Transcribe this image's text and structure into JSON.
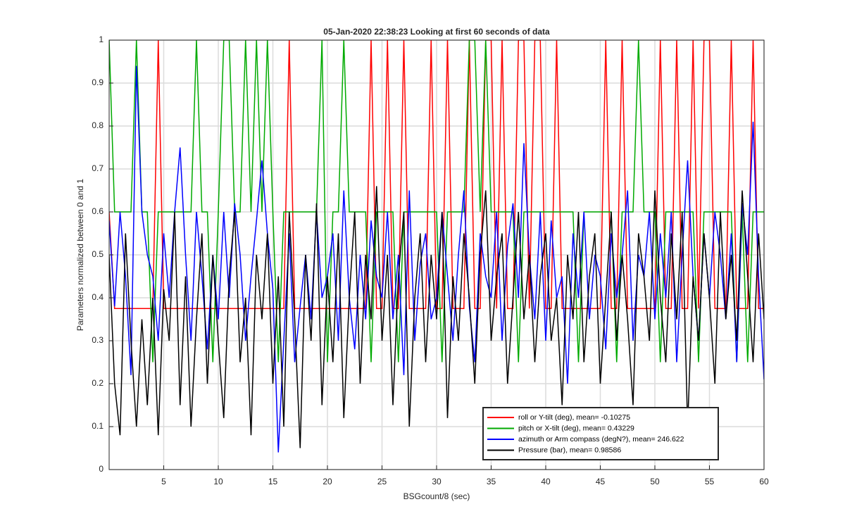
{
  "chart_data": {
    "type": "line",
    "title": "05-Jan-2020 22:38:23 Looking at first 60 seconds of data",
    "x_label": "BSGcount/8 (sec)",
    "y_label": "Parameters normalized between 0 and 1",
    "x": [
      0,
      0.5,
      1,
      1.5,
      2,
      2.5,
      3,
      3.5,
      4,
      4.5,
      5,
      5.5,
      6,
      6.5,
      7,
      7.5,
      8,
      8.5,
      9,
      9.5,
      10,
      10.5,
      11,
      11.5,
      12,
      12.5,
      13,
      13.5,
      14,
      14.5,
      15,
      15.5,
      16,
      16.5,
      17,
      17.5,
      18,
      18.5,
      19,
      19.5,
      20,
      20.5,
      21,
      21.5,
      22,
      22.5,
      23,
      23.5,
      24,
      24.5,
      25,
      25.5,
      26,
      26.5,
      27,
      27.5,
      28,
      28.5,
      29,
      29.5,
      30,
      30.5,
      31,
      31.5,
      32,
      32.5,
      33,
      33.5,
      34,
      34.5,
      35,
      35.5,
      36,
      36.5,
      37,
      37.5,
      38,
      38.5,
      39,
      39.5,
      40,
      40.5,
      41,
      41.5,
      42,
      42.5,
      43,
      43.5,
      44,
      44.5,
      45,
      45.5,
      46,
      46.5,
      47,
      47.5,
      48,
      48.5,
      49,
      49.5,
      50,
      50.5,
      51,
      51.5,
      52,
      52.5,
      53,
      53.5,
      54,
      54.5,
      55,
      55.5,
      56,
      56.5,
      57,
      57.5,
      58,
      58.5,
      59,
      59.5,
      60
    ],
    "series": [
      {
        "name": "roll or Y-tilt (deg), mean= -0.10275",
        "color": "#ff0000",
        "values": [
          0.6,
          0.375,
          0.375,
          0.375,
          0.375,
          0.375,
          0.375,
          0.375,
          0.375,
          1,
          0.375,
          0.375,
          0.375,
          0.375,
          0.375,
          0.375,
          0.375,
          0.375,
          0.375,
          0.375,
          0.375,
          0.375,
          0.375,
          0.375,
          0.375,
          0.375,
          0.375,
          0.375,
          0.375,
          0.375,
          0.375,
          0.375,
          0.375,
          1,
          0.375,
          0.375,
          0.375,
          0.375,
          0.375,
          0.375,
          0.375,
          0.375,
          0.375,
          0.375,
          0.375,
          0.375,
          0.375,
          0.375,
          1,
          0.375,
          0.375,
          1,
          0.375,
          0.375,
          1,
          0.375,
          0.375,
          0.375,
          0.375,
          1,
          0.375,
          0.375,
          1,
          0.375,
          0.375,
          0.375,
          1,
          0.375,
          0.375,
          1,
          1,
          0.375,
          1,
          0.375,
          0.375,
          1,
          1,
          0.375,
          1,
          1,
          0.375,
          0.375,
          1,
          0.375,
          0.375,
          0.375,
          0.375,
          0.375,
          0.375,
          0.375,
          0.375,
          1,
          0.375,
          0.375,
          1,
          0.375,
          0.375,
          0.375,
          0.375,
          0.375,
          0.375,
          1,
          0.375,
          0.375,
          1,
          0.375,
          0.375,
          1,
          0.375,
          1,
          1,
          0.375,
          0.375,
          0.375,
          1,
          0.375,
          0.375,
          0.375,
          1,
          0.375,
          0.375
        ]
      },
      {
        "name": "pitch or X-tilt (deg), mean= 0.43229",
        "color": "#00aa00",
        "values": [
          1,
          0.6,
          0.6,
          0.6,
          0.6,
          1,
          0.6,
          0.6,
          0.25,
          0.6,
          0.6,
          0.6,
          0.6,
          0.6,
          0.6,
          0.6,
          1,
          0.6,
          0.6,
          0.25,
          0.6,
          1,
          1,
          0.6,
          0.6,
          1,
          0.6,
          1,
          0.6,
          1,
          0.6,
          0.25,
          0.6,
          0.6,
          0.6,
          0.6,
          0.6,
          0.6,
          0.6,
          1,
          0.25,
          0.6,
          0.6,
          1,
          0.6,
          0.6,
          0.6,
          0.6,
          0.25,
          0.6,
          0.6,
          0.6,
          0.6,
          0.25,
          0.6,
          0.6,
          0.6,
          0.6,
          0.6,
          0.6,
          0.6,
          0.25,
          0.6,
          0.6,
          0.6,
          0.6,
          1,
          1,
          0.6,
          1,
          0.6,
          0.6,
          0.6,
          0.6,
          0.6,
          0.25,
          0.6,
          0.6,
          0.6,
          0.6,
          0.6,
          0.6,
          0.6,
          0.6,
          0.6,
          0.6,
          0.25,
          0.6,
          0.6,
          0.6,
          0.6,
          0.6,
          0.6,
          0.25,
          0.6,
          0.6,
          0.6,
          1,
          0.6,
          0.6,
          0.6,
          0.25,
          0.6,
          0.6,
          0.6,
          0.6,
          0.6,
          0.6,
          0.25,
          0.6,
          0.6,
          0.6,
          0.6,
          0.6,
          0.6,
          0.25,
          0.6,
          0.25,
          0.6,
          0.6,
          0.6
        ]
      },
      {
        "name": "azimuth or Arm compass (degN?), mean= 246.622",
        "color": "#0000ff",
        "values": [
          0.58,
          0.38,
          0.6,
          0.45,
          0.22,
          0.94,
          0.6,
          0.5,
          0.45,
          0.3,
          0.55,
          0.4,
          0.6,
          0.75,
          0.5,
          0.3,
          0.6,
          0.45,
          0.28,
          0.5,
          0.35,
          0.6,
          0.4,
          0.62,
          0.5,
          0.3,
          0.45,
          0.58,
          0.72,
          0.55,
          0.42,
          0.04,
          0.3,
          0.55,
          0.25,
          0.38,
          0.5,
          0.35,
          0.6,
          0.4,
          0.45,
          0.55,
          0.3,
          0.65,
          0.4,
          0.28,
          0.5,
          0.35,
          0.58,
          0.45,
          0.4,
          0.6,
          0.35,
          0.5,
          0.22,
          0.65,
          0.3,
          0.48,
          0.55,
          0.35,
          0.4,
          0.6,
          0.45,
          0.3,
          0.5,
          0.65,
          0.38,
          0.25,
          0.55,
          0.45,
          0.4,
          0.6,
          0.3,
          0.52,
          0.62,
          0.4,
          0.76,
          0.5,
          0.35,
          0.6,
          0.3,
          0.58,
          0.4,
          0.45,
          0.2,
          0.55,
          0.4,
          0.6,
          0.35,
          0.5,
          0.45,
          0.28,
          0.55,
          0.4,
          0.5,
          0.65,
          0.3,
          0.5,
          0.45,
          0.6,
          0.35,
          0.55,
          0.4,
          0.6,
          0.25,
          0.5,
          0.72,
          0.45,
          0.3,
          0.55,
          0.4,
          0.6,
          0.5,
          0.35,
          0.55,
          0.25,
          0.62,
          0.5,
          0.81,
          0.45,
          0.21
        ]
      },
      {
        "name": "Pressure (bar), mean= 0.98586",
        "color": "#000000",
        "values": [
          0.5,
          0.2,
          0.08,
          0.55,
          0.3,
          0.1,
          0.35,
          0.15,
          0.4,
          0.08,
          0.42,
          0.3,
          0.6,
          0.15,
          0.45,
          0.1,
          0.35,
          0.55,
          0.2,
          0.5,
          0.3,
          0.12,
          0.45,
          0.6,
          0.25,
          0.4,
          0.08,
          0.5,
          0.35,
          0.55,
          0.2,
          0.45,
          0.1,
          0.6,
          0.35,
          0.05,
          0.5,
          0.3,
          0.62,
          0.15,
          0.45,
          0.25,
          0.55,
          0.12,
          0.4,
          0.6,
          0.2,
          0.5,
          0.35,
          0.66,
          0.3,
          0.5,
          0.15,
          0.45,
          0.6,
          0.1,
          0.4,
          0.55,
          0.25,
          0.5,
          0.35,
          0.6,
          0.12,
          0.45,
          0.3,
          0.55,
          0.4,
          0.2,
          0.5,
          0.65,
          0.3,
          0.45,
          0.55,
          0.2,
          0.4,
          0.6,
          0.35,
          0.5,
          0.25,
          0.45,
          0.55,
          0.3,
          0.4,
          0.15,
          0.5,
          0.35,
          0.6,
          0.25,
          0.45,
          0.55,
          0.2,
          0.4,
          0.6,
          0.3,
          0.5,
          0.35,
          0.15,
          0.55,
          0.45,
          0.3,
          0.65,
          0.4,
          0.25,
          0.55,
          0.35,
          0.6,
          0.1,
          0.45,
          0.3,
          0.55,
          0.4,
          0.2,
          0.6,
          0.35,
          0.5,
          0.3,
          0.65,
          0.45,
          0.25,
          0.55,
          0.35
        ]
      }
    ],
    "xlim": [
      0,
      60
    ],
    "xticks": [
      5,
      10,
      15,
      20,
      25,
      30,
      35,
      40,
      45,
      50,
      55,
      60
    ],
    "ylim": [
      0,
      1
    ],
    "yticks": [
      0,
      0.1,
      0.2,
      0.3,
      0.4,
      0.5,
      0.6,
      0.7,
      0.8,
      0.9,
      1
    ],
    "grid": true,
    "legend": "lower right"
  }
}
